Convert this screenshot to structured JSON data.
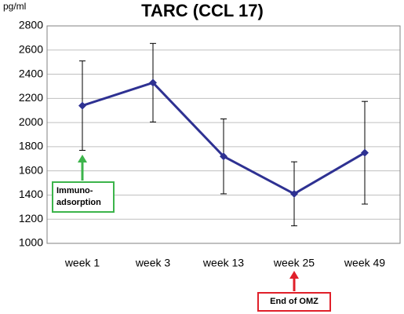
{
  "chart_data": {
    "type": "line",
    "title": "TARC (CCL 17)",
    "ylabel": "pg/ml",
    "categories": [
      "week 1",
      "week 3",
      "week 13",
      "week 25",
      "week 49"
    ],
    "values": [
      2140,
      2330,
      1720,
      1410,
      1750
    ],
    "errors": [
      370,
      325,
      310,
      265,
      425
    ],
    "color": "#2e3192",
    "ylim": [
      1000,
      2800
    ],
    "yticks": [
      1000,
      1200,
      1400,
      1600,
      1800,
      2000,
      2200,
      2400,
      2600,
      2800
    ],
    "grid": true,
    "annotations": [
      {
        "lines": [
          "Immuno-",
          "adsorption"
        ],
        "color": "#3cb44b"
      },
      {
        "lines": [
          "End of OMZ"
        ],
        "color": "#e0202a"
      }
    ]
  }
}
